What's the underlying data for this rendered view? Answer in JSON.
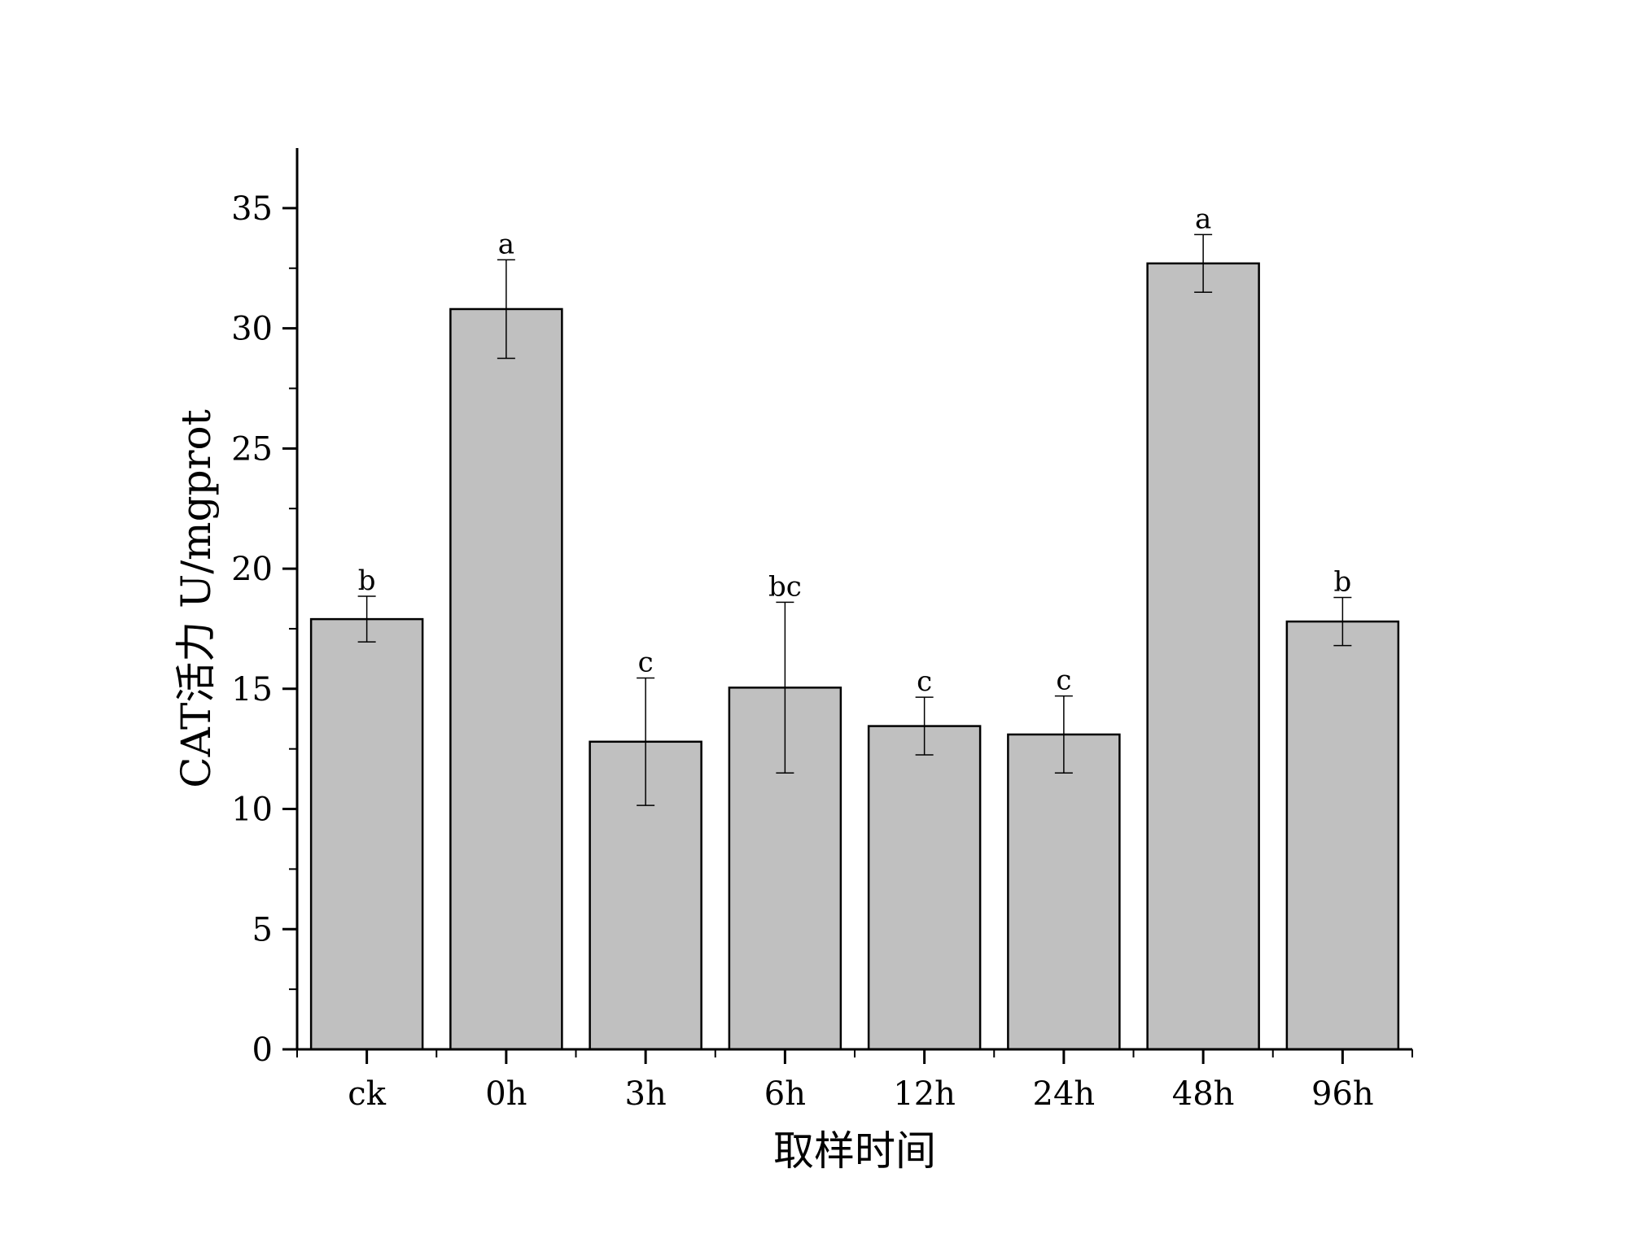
{
  "chart_data": {
    "type": "bar",
    "xlabel": "取样时间",
    "ylabel": "CAT活力 U/mgprot",
    "ylim": [
      0,
      37.5
    ],
    "yticks": [
      0,
      5,
      10,
      15,
      20,
      25,
      30,
      35
    ],
    "categories": [
      "ck",
      "0h",
      "3h",
      "6h",
      "12h",
      "24h",
      "48h",
      "96h"
    ],
    "series": [
      {
        "values": [
          17.9,
          30.8,
          12.8,
          15.05,
          13.45,
          13.1,
          32.7,
          17.8
        ],
        "errors": [
          0.95,
          2.05,
          2.65,
          3.55,
          1.2,
          1.6,
          1.2,
          1.0
        ],
        "labels": [
          "b",
          "a",
          "c",
          "bc",
          "c",
          "c",
          "a",
          "b"
        ]
      }
    ],
    "bar_color": "#c0c0c0",
    "grid": false,
    "legend": "none"
  }
}
